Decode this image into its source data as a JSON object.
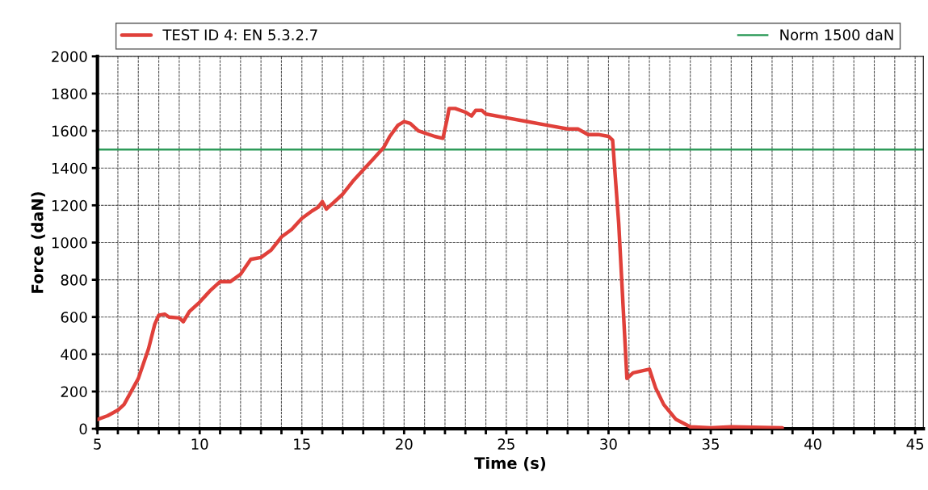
{
  "chart_data": {
    "type": "line",
    "xlabel": "Time (s)",
    "ylabel": "Force (daN)",
    "xlim": [
      5,
      45.4
    ],
    "ylim": [
      0,
      2000
    ],
    "xticks": [
      5,
      {
        "value": 6,
        "label": null
      },
      {
        "value": 7,
        "label": null
      },
      {
        "value": 8,
        "label": null
      },
      {
        "value": 9,
        "label": null
      },
      10,
      {
        "value": 11,
        "label": null
      },
      {
        "value": 12,
        "label": null
      },
      {
        "value": 13,
        "label": null
      },
      {
        "value": 14,
        "label": null
      },
      15,
      {
        "value": 16,
        "label": null
      },
      {
        "value": 17,
        "label": null
      },
      {
        "value": 18,
        "label": null
      },
      {
        "value": 19,
        "label": null
      },
      20,
      {
        "value": 21,
        "label": null
      },
      {
        "value": 22,
        "label": null
      },
      {
        "value": 23,
        "label": null
      },
      {
        "value": 24,
        "label": null
      },
      25,
      {
        "value": 26,
        "label": null
      },
      {
        "value": 27,
        "label": null
      },
      {
        "value": 28,
        "label": null
      },
      {
        "value": 29,
        "label": null
      },
      30,
      {
        "value": 31,
        "label": null
      },
      {
        "value": 32,
        "label": null
      },
      {
        "value": 33,
        "label": null
      },
      {
        "value": 34,
        "label": null
      },
      35,
      {
        "value": 36,
        "label": null
      },
      {
        "value": 37,
        "label": null
      },
      {
        "value": 38,
        "label": null
      },
      {
        "value": 39,
        "label": null
      },
      40,
      {
        "value": 41,
        "label": null
      },
      {
        "value": 42,
        "label": null
      },
      {
        "value": 43,
        "label": null
      },
      {
        "value": 44,
        "label": null
      },
      45
    ],
    "yticks": [
      0,
      200,
      400,
      600,
      800,
      1000,
      1200,
      1400,
      1600,
      1800,
      2000
    ],
    "grid": true,
    "legend": "top",
    "marker": "none",
    "line_style": "solid",
    "series": [
      {
        "name": "TEST ID 4: EN 5.3.2.7",
        "color": "#e0403a",
        "x": [
          5,
          5.5,
          6,
          6.3,
          7,
          7.5,
          7.8,
          8,
          8.3,
          8.5,
          9,
          9.2,
          9.5,
          10,
          10.5,
          11,
          11.5,
          12,
          12.5,
          13,
          13.5,
          14,
          14.5,
          15,
          15.5,
          15.8,
          16,
          16.2,
          16.5,
          17,
          17.5,
          18,
          18.5,
          19,
          19.3,
          19.7,
          20,
          20.3,
          20.7,
          21.5,
          21.9,
          22.1,
          22.2,
          22.5,
          23,
          23.3,
          23.5,
          23.8,
          24,
          25,
          26,
          27,
          28,
          28.5,
          29,
          29.5,
          30,
          30.2,
          30.5,
          30.9,
          31.2,
          32,
          32.3,
          32.7,
          33.3,
          34,
          35,
          36,
          37,
          38.5
        ],
        "values": [
          50,
          70,
          100,
          130,
          270,
          430,
          560,
          610,
          615,
          600,
          595,
          575,
          630,
          680,
          740,
          790,
          790,
          830,
          910,
          920,
          960,
          1030,
          1070,
          1130,
          1170,
          1190,
          1220,
          1180,
          1210,
          1260,
          1330,
          1390,
          1450,
          1510,
          1570,
          1630,
          1650,
          1640,
          1600,
          1570,
          1560,
          1660,
          1720,
          1720,
          1700,
          1680,
          1710,
          1710,
          1690,
          1670,
          1650,
          1630,
          1610,
          1610,
          1580,
          1580,
          1570,
          1550,
          1100,
          270,
          300,
          320,
          220,
          130,
          50,
          10,
          5,
          10,
          8,
          5
        ]
      }
    ],
    "ref_lines": [
      {
        "axis": "y",
        "value": 1500,
        "label": "Norm 1500 daN",
        "color": "#2e9b5a",
        "line_style": "solid"
      }
    ]
  }
}
